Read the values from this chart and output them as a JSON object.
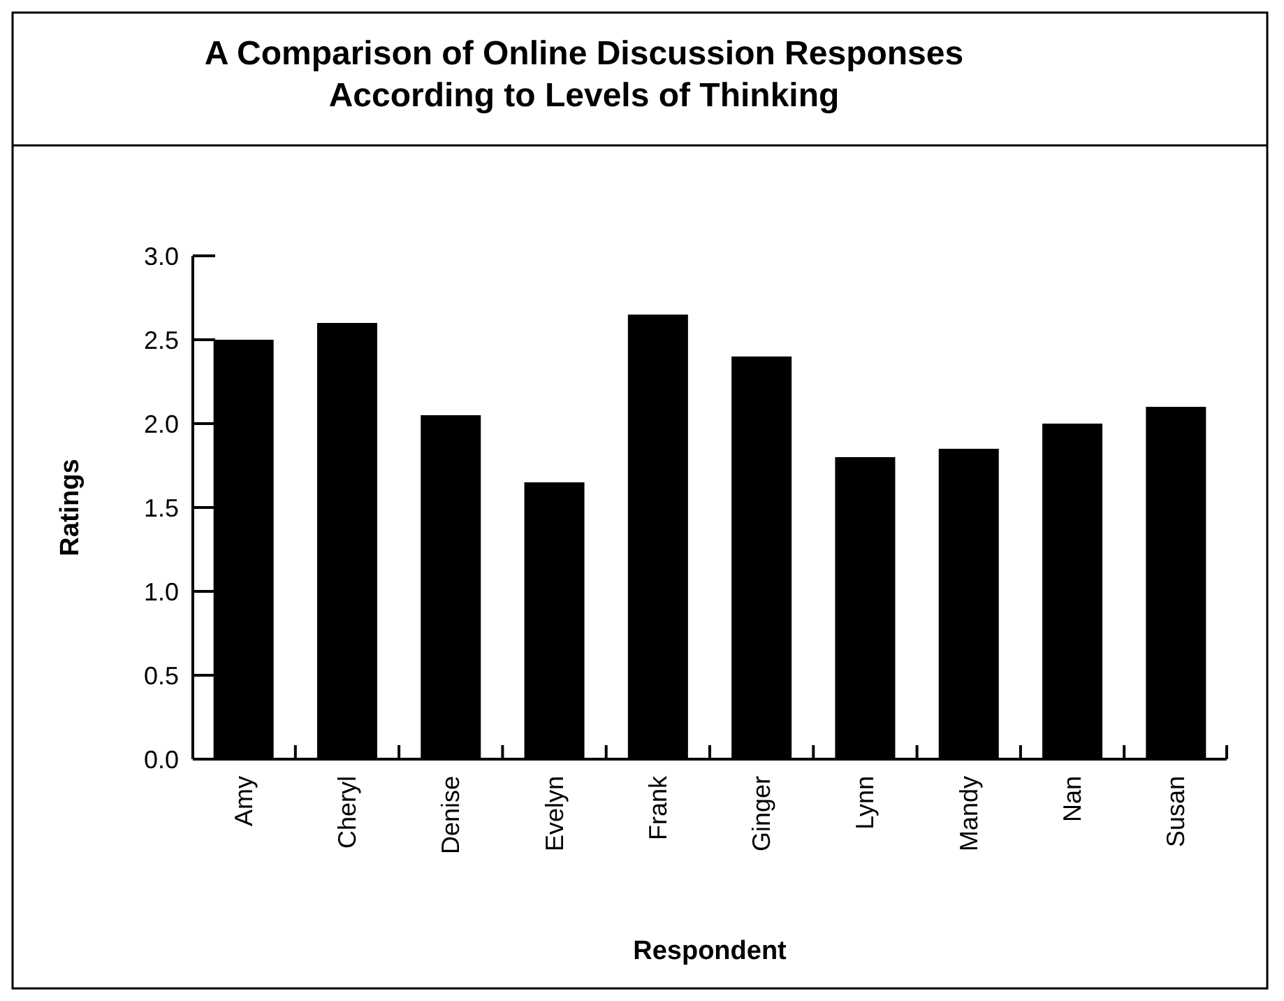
{
  "chart_data": {
    "type": "bar",
    "title": "A Comparison of Online Discussion Responses\nAccording to Levels of Thinking",
    "xlabel": "Respondent",
    "ylabel": "Ratings",
    "categories": [
      "Amy",
      "Cheryl",
      "Denise",
      "Evelyn",
      "Frank",
      "Ginger",
      "Lynn",
      "Mandy",
      "Nan",
      "Susan"
    ],
    "values": [
      2.5,
      2.6,
      2.05,
      1.65,
      2.65,
      2.4,
      1.8,
      1.85,
      2.0,
      2.1
    ],
    "color": "#000000",
    "ylim": [
      0,
      3
    ],
    "yticks": [
      {
        "value": 0,
        "label": "0.0"
      },
      {
        "value": 0.5,
        "label": "0.5"
      },
      {
        "value": 1,
        "label": "1.0"
      },
      {
        "value": 1.5,
        "label": "1.5"
      },
      {
        "value": 2,
        "label": "2.0"
      },
      {
        "value": 2.5,
        "label": "2.5"
      },
      {
        "value": 3,
        "label": "3.0"
      }
    ]
  }
}
